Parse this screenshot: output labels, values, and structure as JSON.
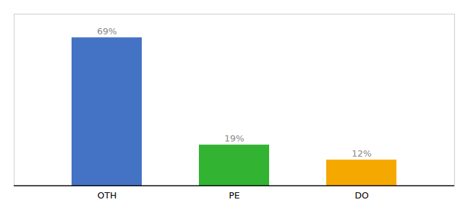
{
  "chart_data": {
    "type": "bar",
    "categories": [
      "OTH",
      "PE",
      "DO"
    ],
    "values": [
      69,
      19,
      12
    ],
    "value_labels": [
      "69%",
      "19%",
      "12%"
    ],
    "colors": [
      "#4472c4",
      "#32b332",
      "#f5a800"
    ],
    "ylim": [
      0,
      80
    ],
    "tick_labels": "x",
    "data_labels": true
  }
}
